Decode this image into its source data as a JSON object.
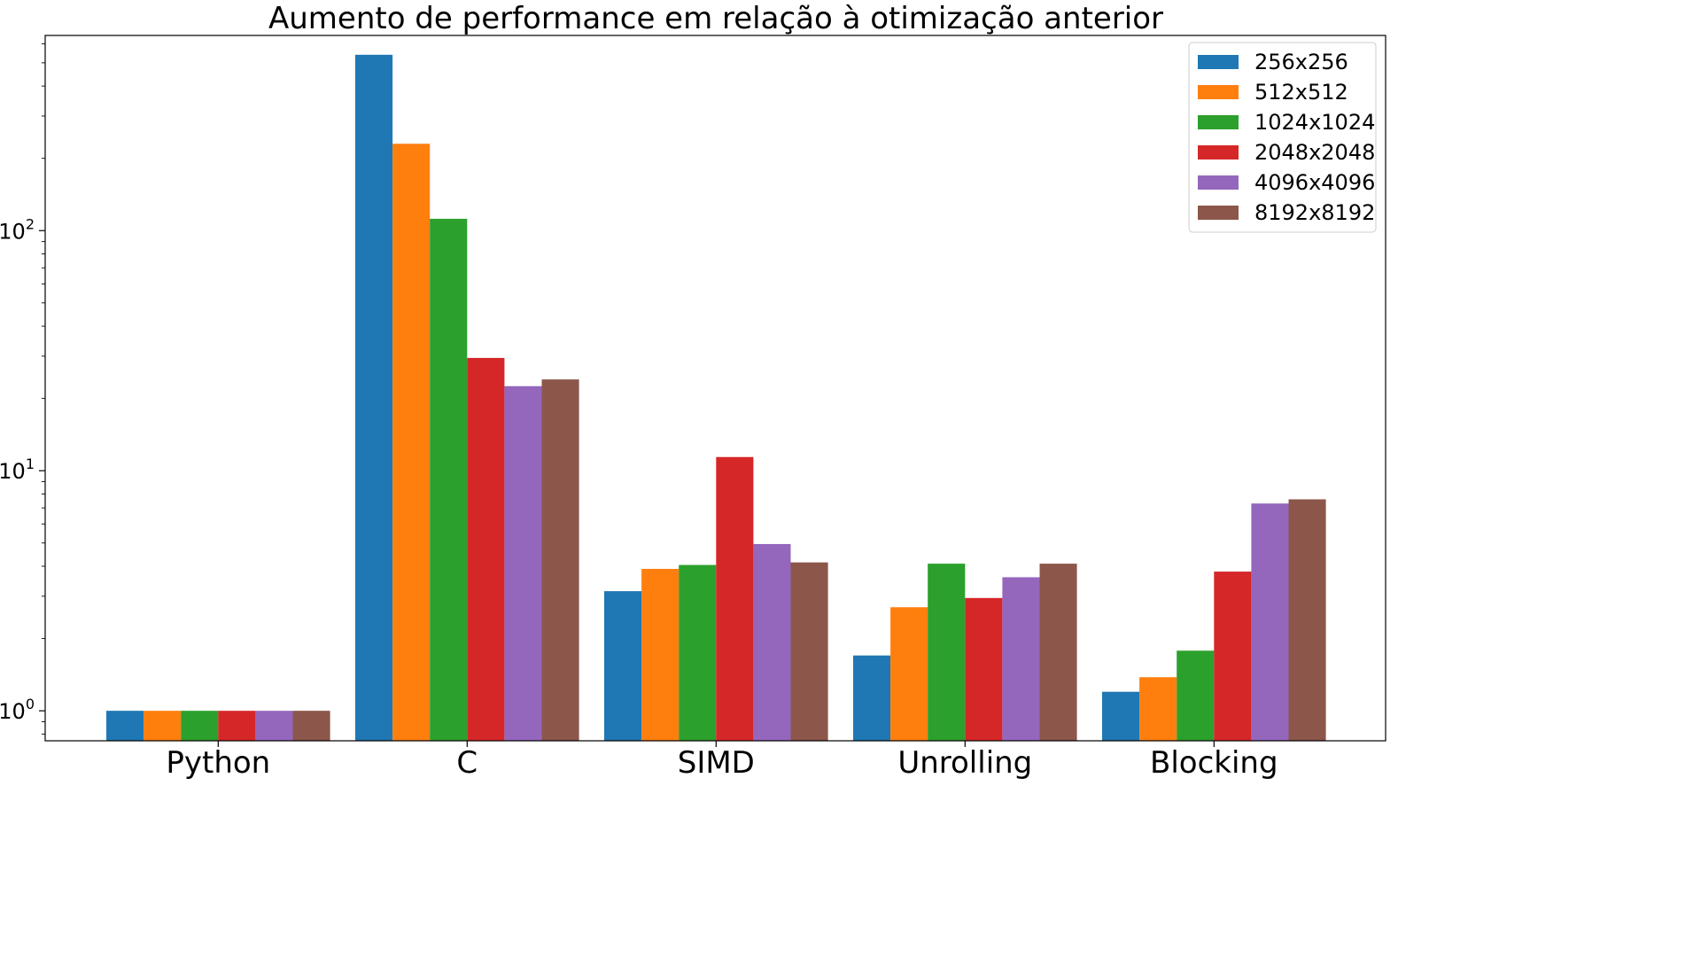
{
  "chart_data": {
    "type": "bar",
    "title": "Aumento de performance em relação à otimização anterior",
    "xlabel": "",
    "ylabel": "",
    "yscale": "log",
    "ylim": [
      0.75,
      650
    ],
    "grid": false,
    "legend_position": "top-right",
    "categories": [
      "Python",
      "C",
      "SIMD",
      "Unrolling",
      "Blocking"
    ],
    "y_ticks": [
      {
        "base": "10",
        "exp": "0",
        "value": 1
      },
      {
        "base": "10",
        "exp": "1",
        "value": 10
      },
      {
        "base": "10",
        "exp": "2",
        "value": 100
      }
    ],
    "series": [
      {
        "name": "256x256",
        "color": "#1f77b4",
        "values": [
          1.0,
          540,
          3.15,
          1.7,
          1.2
        ]
      },
      {
        "name": "512x512",
        "color": "#ff7f0e",
        "values": [
          1.0,
          230,
          3.9,
          2.7,
          1.38
        ]
      },
      {
        "name": "1024x1024",
        "color": "#2ca02c",
        "values": [
          1.0,
          112,
          4.05,
          4.1,
          1.78
        ]
      },
      {
        "name": "2048x2048",
        "color": "#d62728",
        "values": [
          1.0,
          29.5,
          11.4,
          2.95,
          3.8
        ]
      },
      {
        "name": "4096x4096",
        "color": "#9467bd",
        "values": [
          1.0,
          22.5,
          4.95,
          3.6,
          7.3
        ]
      },
      {
        "name": "8192x8192",
        "color": "#8c564b",
        "values": [
          1.0,
          24,
          4.15,
          4.1,
          7.6
        ]
      }
    ]
  }
}
